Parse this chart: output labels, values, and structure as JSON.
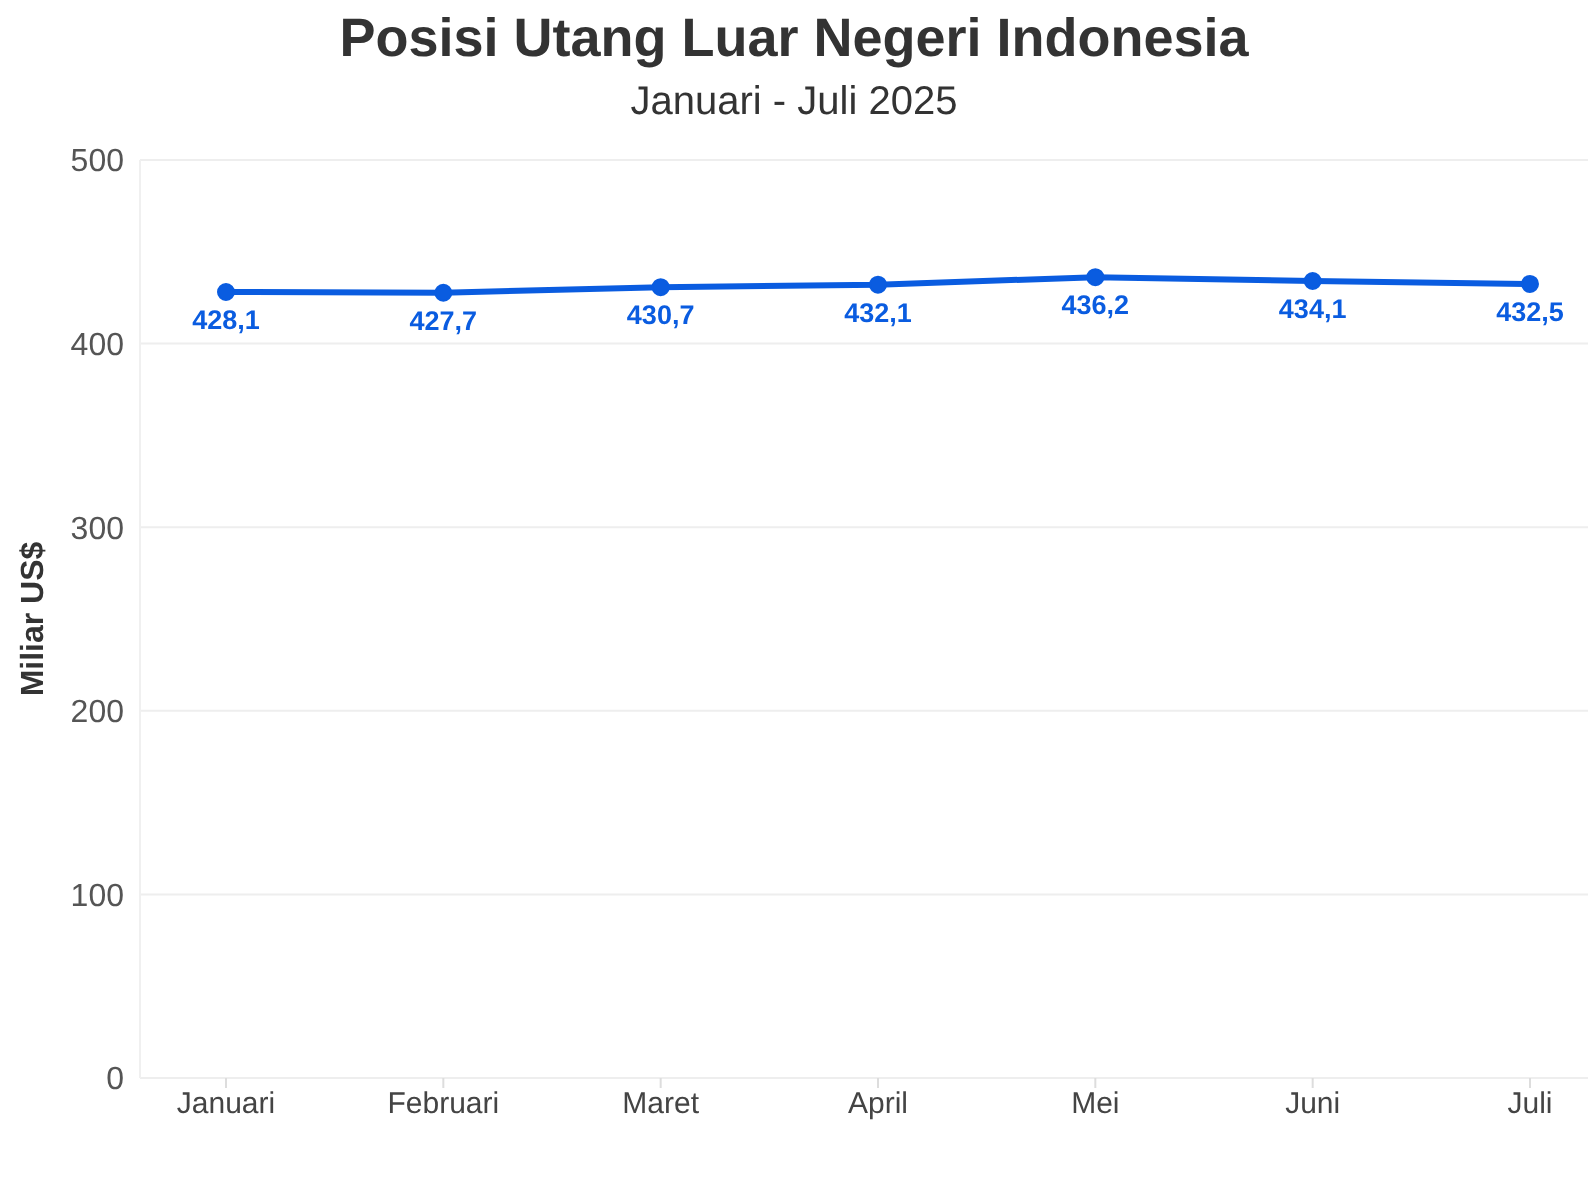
{
  "chart_data": {
    "type": "line",
    "title": "Posisi Utang Luar Negeri Indonesia",
    "subtitle": "Januari - Juli 2025",
    "ylabel": "Miliar US$",
    "categories": [
      "Januari",
      "Februari",
      "Maret",
      "April",
      "Mei",
      "Juni",
      "Juli"
    ],
    "values": [
      428.1,
      427.7,
      430.7,
      432.1,
      436.2,
      434.1,
      432.5
    ],
    "value_labels": [
      "428,1",
      "427,7",
      "430,7",
      "432,1",
      "436,2",
      "434,1",
      "432,5"
    ],
    "color": "#0a5ce0",
    "ylim": [
      0,
      500
    ],
    "yticks": [
      0,
      100,
      200,
      300,
      400,
      500
    ],
    "grid": "y",
    "marker": "circle",
    "line_style": "solid"
  }
}
